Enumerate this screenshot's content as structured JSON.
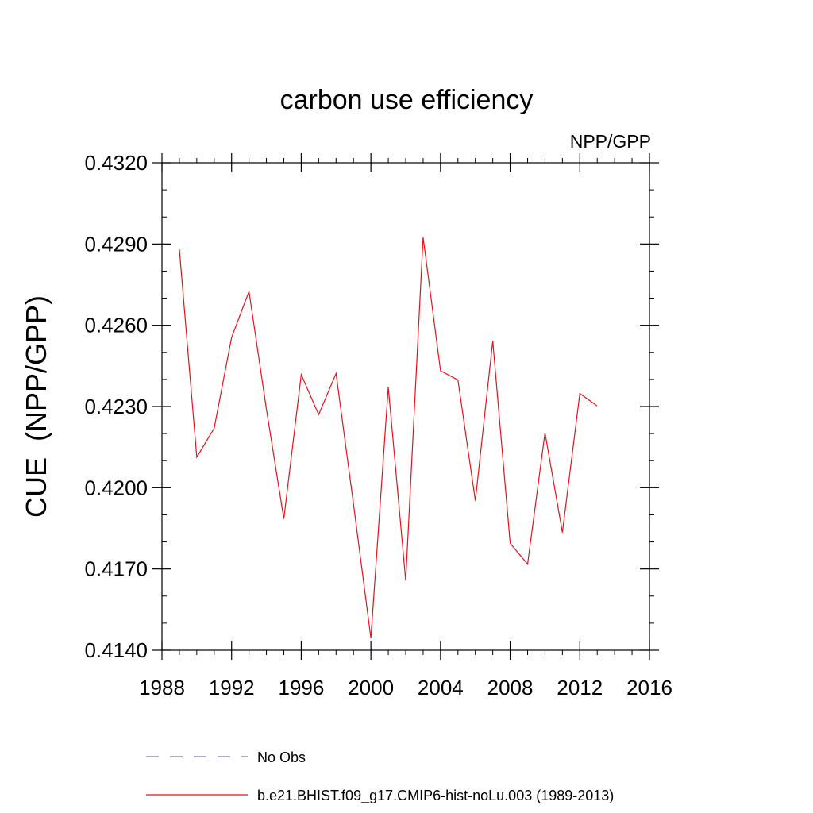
{
  "chart_data": {
    "type": "line",
    "title": "carbon use efficiency",
    "subtitle": "NPP/GPP",
    "xlabel": "",
    "ylabel": "CUE  (NPP/GPP)",
    "xlim": [
      1988,
      2016
    ],
    "ylim": [
      0.414,
      0.432
    ],
    "x_ticks": [
      1988,
      1992,
      1996,
      2000,
      2004,
      2008,
      2012,
      2016
    ],
    "x_tick_labels": [
      "1988",
      "1992",
      "1996",
      "2000",
      "2004",
      "2008",
      "2012",
      "2016"
    ],
    "y_ticks": [
      0.414,
      0.417,
      0.42,
      0.423,
      0.426,
      0.429,
      0.432
    ],
    "y_tick_labels": [
      "0.4140",
      "0.4170",
      "0.4200",
      "0.4230",
      "0.4260",
      "0.4290",
      "0.4320"
    ],
    "grid": false,
    "legend_position": "bottom",
    "series": [
      {
        "name": "b.e21.BHIST.f09_g17.CMIP6-hist-noLu.003 (1989-2013)",
        "color": "#e8111b",
        "style": "solid",
        "x": [
          1989,
          1990,
          1991,
          1992,
          1993,
          1994,
          1995,
          1996,
          1997,
          1998,
          1999,
          2000,
          2001,
          2002,
          2003,
          2004,
          2005,
          2006,
          2007,
          2008,
          2009,
          2010,
          2011,
          2012,
          2013
        ],
        "y": [
          0.4288,
          0.42113,
          0.4222,
          0.42555,
          0.42725,
          0.4229,
          0.41885,
          0.42418,
          0.4227,
          0.42422,
          0.4194,
          0.41445,
          0.42372,
          0.41657,
          0.42925,
          0.42432,
          0.42398,
          0.41952,
          0.42542,
          0.41795,
          0.41718,
          0.42203,
          0.41835,
          0.42348,
          0.42302
        ]
      }
    ],
    "legend": [
      {
        "label": "No Obs",
        "color": "#7a7ab8",
        "style": "dashed"
      },
      {
        "label": "b.e21.BHIST.f09_g17.CMIP6-hist-noLu.003 (1989-2013)",
        "color": "#e8111b",
        "style": "solid"
      }
    ]
  }
}
